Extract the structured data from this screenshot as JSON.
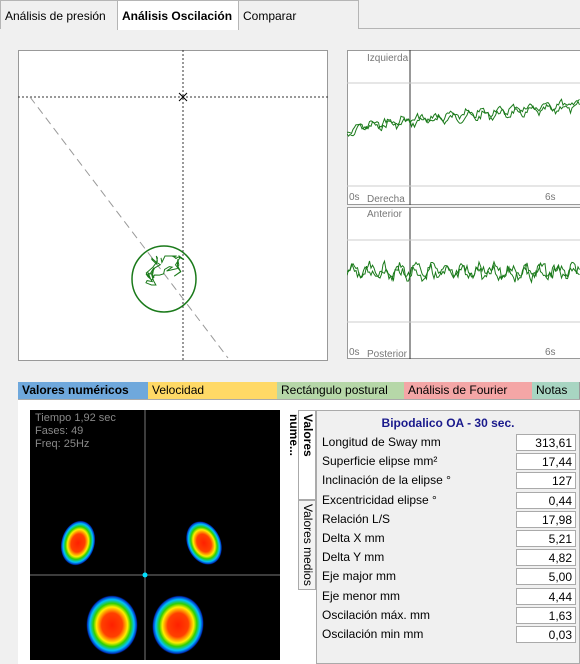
{
  "top_tabs": [
    "Análisis de presión",
    "Análisis Oscilación",
    "Comparar"
  ],
  "right_charts": [
    {
      "top_label": "Izquierda",
      "bottom_label": "Derecha",
      "start_label": "0s",
      "end_label": "6s"
    },
    {
      "top_label": "Anterior",
      "bottom_label": "Posterior",
      "start_label": "0s",
      "end_label": "6s"
    }
  ],
  "bottom_tabs": [
    "Valores numéricos",
    "Velocidad",
    "Rectángulo postural",
    "Análisis de Fourier",
    "Notas"
  ],
  "heatmap": {
    "info": [
      "Tiempo 1,92 sec",
      "Fases: 49",
      "Freq: 25Hz"
    ]
  },
  "side_tabs": [
    "Valores nume...",
    "Valores medios"
  ],
  "table": {
    "title": "Bipodalico OA - 30 sec.",
    "rows": [
      [
        "Longitud de Sway mm",
        "313,61"
      ],
      [
        "Superficie elipse mm²",
        "17,44"
      ],
      [
        "Inclinación de la elipse °",
        "127"
      ],
      [
        "Excentricidad elipse °",
        "0,44"
      ],
      [
        "Relación L/S",
        "17,98"
      ],
      [
        "Delta X mm",
        "5,21"
      ],
      [
        "Delta Y mm",
        "4,82"
      ],
      [
        "Eje major mm",
        "5,00"
      ],
      [
        "Eje menor mm",
        "4,44"
      ],
      [
        "Oscilación máx. mm",
        "1,63"
      ],
      [
        "Oscilación min mm",
        "0,03"
      ]
    ]
  }
}
